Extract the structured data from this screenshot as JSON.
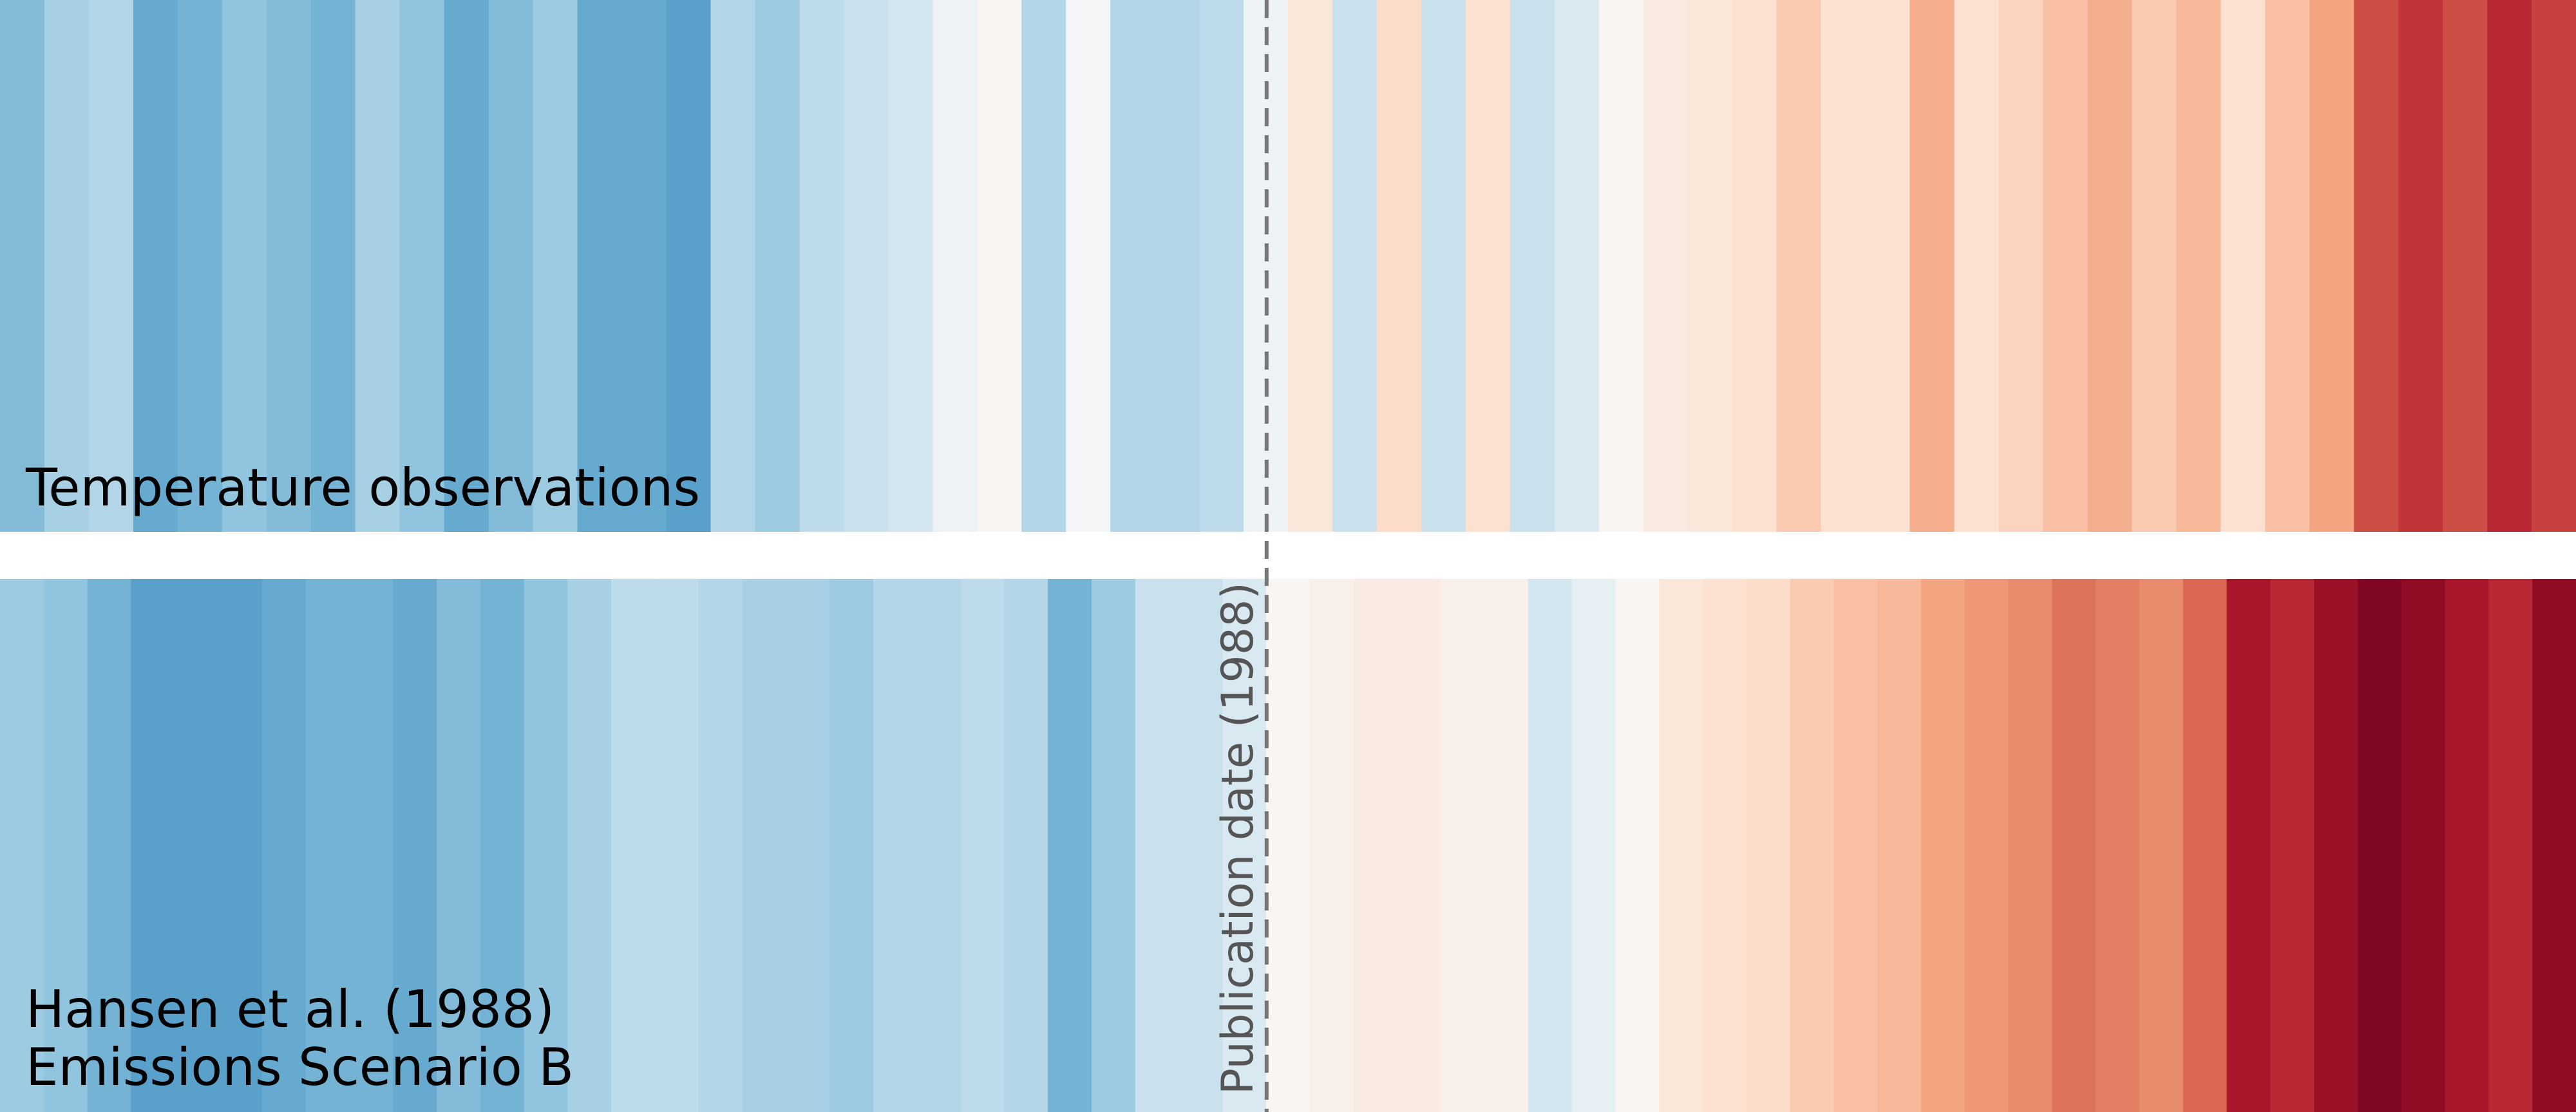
{
  "chart_data": {
    "type": "heatmap",
    "colormap": "RdBu_r",
    "color_range": [
      0,
      57
    ],
    "panels": [
      {
        "name": "Temperature observations",
        "values": [
          16,
          19,
          20,
          14,
          15,
          17,
          16,
          15,
          19,
          17,
          14,
          16,
          18,
          14,
          14,
          13,
          20,
          18,
          21,
          22,
          23,
          27,
          29,
          20,
          28,
          20,
          20,
          21,
          27,
          32,
          22,
          34,
          22,
          33,
          22,
          24,
          29,
          31,
          32,
          33,
          36,
          33,
          33,
          39,
          33,
          35,
          37,
          39,
          36,
          38,
          33,
          37,
          40,
          47,
          49,
          47,
          50,
          48
        ]
      },
      {
        "name_lines": [
          "Hansen et al. (1988)",
          "Emissions Scenario B"
        ],
        "values": [
          18,
          17,
          15,
          13,
          13,
          13,
          14,
          15,
          15,
          14,
          16,
          15,
          17,
          19,
          21,
          21,
          20,
          19,
          19,
          18,
          20,
          20,
          21,
          20,
          15,
          18,
          22,
          22,
          24,
          29,
          30,
          31,
          31,
          30,
          30,
          23,
          26,
          29,
          32,
          33,
          34,
          36,
          37,
          38,
          40,
          41,
          42,
          44,
          43,
          42,
          45,
          52,
          50,
          53,
          55,
          54,
          52,
          50,
          54
        ]
      }
    ],
    "annotation": {
      "label": "Publication date (1988)",
      "position_fraction": 0.4917,
      "style": "dashed",
      "color": "#777777"
    }
  }
}
